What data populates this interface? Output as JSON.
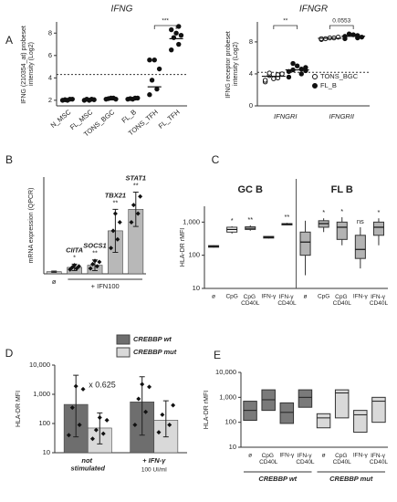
{
  "chart_data": [
    {
      "panel": "A",
      "type": "strip",
      "title": "IFNG",
      "ylabel": "IFNG (210354_at) probeset intensity (Log2)",
      "ylim": [
        1.5,
        9
      ],
      "yticks": [
        2,
        4,
        6,
        8
      ],
      "threshold": 4.3,
      "categories": [
        "N_MSC",
        "FL_MSC",
        "TONS_BGC",
        "FL_B",
        "TONS_TFH",
        "FL_TFH"
      ],
      "series": [
        {
          "marker": "filled",
          "color": "#111111",
          "values": [
            [
              2.0,
              2.1,
              2.05,
              2.1,
              2.0
            ],
            [
              2.0,
              2.1,
              2.1,
              2.05,
              2.0
            ],
            [
              2.1,
              2.2,
              2.15,
              2.1,
              2.2
            ],
            [
              2.1,
              2.2,
              2.15,
              2.2,
              2.1
            ],
            [
              2.5,
              3.0,
              3.8,
              4.8,
              5.6,
              5.6
            ],
            [
              6.5,
              7.0,
              7.6,
              7.8,
              8.0,
              8.3,
              8.6
            ]
          ],
          "medians": [
            2.05,
            2.05,
            2.15,
            2.15,
            3.2,
            7.5
          ]
        }
      ],
      "annotations": [
        {
          "label": "***",
          "categories": [
            "TONS_TFH",
            "FL_TFH"
          ]
        }
      ]
    },
    {
      "type": "strip",
      "title": "IFNGR",
      "ylabel": "IFNG receptor probeset intensity (Log2)",
      "ylim": [
        0,
        10.5
      ],
      "yticks": [
        0,
        4,
        8
      ],
      "threshold": 4.2,
      "categories": [
        "IFNGRI",
        "IFNGRII"
      ],
      "series": [
        {
          "name": "TONS_BGC",
          "marker": "open",
          "color": "#111111",
          "values": [
            [
              3.0,
              3.5,
              3.8,
              4.0,
              3.4,
              3.2,
              3.9,
              4.1
            ],
            [
              8.3,
              8.5,
              8.4,
              8.6,
              8.5,
              8.4
            ]
          ],
          "medians": [
            3.7,
            8.45
          ]
        },
        {
          "name": "FL_B",
          "marker": "filled",
          "color": "#111111",
          "values": [
            [
              3.6,
              4.0,
              4.5,
              4.8,
              5.0,
              4.3,
              4.6,
              5.3,
              4.4
            ],
            [
              8.4,
              8.8,
              9.0,
              8.6,
              8.9,
              8.7,
              8.5
            ]
          ],
          "medians": [
            4.5,
            8.7
          ]
        }
      ],
      "annotations": [
        {
          "label": "**",
          "categories": [
            "IFNGRI"
          ]
        },
        {
          "label": "0.0553",
          "categories": [
            "IFNGRII"
          ]
        }
      ],
      "legend": "right"
    },
    {
      "panel": "B",
      "type": "bar",
      "ylabel": "mRNA expression (QPCR)",
      "ylim": [
        0,
        45
      ],
      "categories": [
        "ø",
        null,
        null,
        null,
        null
      ],
      "group_label": "+ IFN100",
      "bar_labels": [
        null,
        "CIITA",
        "SOCS1",
        "TBX21",
        "STAT1"
      ],
      "stars": [
        null,
        "*",
        "**",
        "**",
        "**"
      ],
      "series": [
        {
          "color": "#b8b8b8",
          "values": [
            1,
            3,
            4,
            20,
            30
          ],
          "errors": [
            0.3,
            1.5,
            2.5,
            10,
            8
          ],
          "points": [
            [],
            [
              2,
              2.5,
              3,
              3.5,
              4
            ],
            [
              2.5,
              3.5,
              4.5,
              5.5,
              6
            ],
            [
              12,
              16,
              20,
              24,
              28
            ],
            [
              24,
              28,
              32,
              36
            ]
          ]
        }
      ]
    },
    {
      "panel": "C",
      "type": "box",
      "log": true,
      "ylabel": "HLA-DR rMFI",
      "ylim": [
        10,
        3000
      ],
      "yticks": [
        10,
        100,
        {
          "value": 1000,
          "label": "1,000"
        }
      ],
      "groups": [
        {
          "title": "GC B",
          "color": "#ffffff",
          "categories": [
            "ø",
            "CpG",
            "CpG CD40L",
            "IFN-γ",
            "IFN-γ CD40L"
          ],
          "boxes": [
            [
              170,
              175,
              185,
              195,
              200
            ],
            [
              450,
              500,
              600,
              700,
              750
            ],
            [
              550,
              600,
              650,
              720,
              800
            ],
            [
              320,
              330,
              350,
              370,
              380
            ],
            [
              800,
              820,
              880,
              900,
              950
            ]
          ],
          "stars": [
            null,
            "*",
            "**",
            null,
            "**"
          ]
        },
        {
          "title": "FL B",
          "color": "#b3b3b3",
          "categories": [
            "ø",
            "CpG",
            "CpG CD40L",
            "IFN-γ",
            "IFN-γ CD40L"
          ],
          "boxes": [
            [
              25,
              100,
              250,
              500,
              1100
            ],
            [
              500,
              700,
              900,
              1100,
              1300
            ],
            [
              200,
              300,
              700,
              1000,
              1400
            ],
            [
              40,
              80,
              150,
              400,
              700
            ],
            [
              200,
              400,
              700,
              1000,
              1300
            ]
          ],
          "stars": [
            null,
            "*",
            "*",
            "ns",
            "*"
          ]
        }
      ]
    },
    {
      "panel": "D",
      "type": "bar",
      "log": true,
      "ylabel": "HLA-DR MFI",
      "ylim": [
        10,
        10000
      ],
      "yticks": [
        10,
        100,
        {
          "value": 1000,
          "label": "1,000"
        },
        {
          "value": 10000,
          "label": "10,000"
        }
      ],
      "categories": [
        "not stimulated",
        "+ IFN-γ"
      ],
      "sublabels": [
        null,
        "100 UI/ml"
      ],
      "annotation": "x 0.625",
      "legend": "top-right",
      "series": [
        {
          "name": "CREBBP wt",
          "color": "#6e6e6e",
          "values": [
            450,
            550
          ],
          "error_high": [
            4500,
            4000
          ],
          "error_low": [
            35,
            40
          ],
          "points": [
            [
              40,
              90,
              350,
              1500,
              1900
            ],
            [
              90,
              250,
              700,
              1800,
              2200
            ]
          ]
        },
        {
          "name": "CREBBP mut",
          "color": "#d9d9d9",
          "values": [
            70,
            130
          ],
          "error_high": [
            230,
            600
          ],
          "error_low": [
            20,
            35
          ],
          "points": [
            [
              30,
              45,
              60,
              130,
              160
            ],
            [
              50,
              90,
              200,
              420
            ]
          ]
        }
      ]
    },
    {
      "panel": "E",
      "type": "floating",
      "log": true,
      "ylabel": "HLA-DR rMFI",
      "ylim": [
        10,
        10000
      ],
      "yticks": [
        10,
        100,
        {
          "value": 1000,
          "label": "1,000"
        },
        {
          "value": 10000,
          "label": "10,000"
        }
      ],
      "categories": [
        "ø",
        "CpG CD40L",
        "IFN-γ",
        "IFN-γ CD40L"
      ],
      "series": [
        {
          "name": "CREBBP wt",
          "color": "#7a7a7a",
          "low": [
            120,
            300,
            90,
            400
          ],
          "mid": [
            300,
            800,
            250,
            1000
          ],
          "high": [
            700,
            2000,
            600,
            2000
          ]
        },
        {
          "name": "CREBBP mut",
          "color": "#d9d9d9",
          "low": [
            60,
            150,
            40,
            100
          ],
          "mid": [
            150,
            1500,
            200,
            700
          ],
          "high": [
            220,
            2000,
            300,
            1000
          ]
        }
      ]
    }
  ]
}
